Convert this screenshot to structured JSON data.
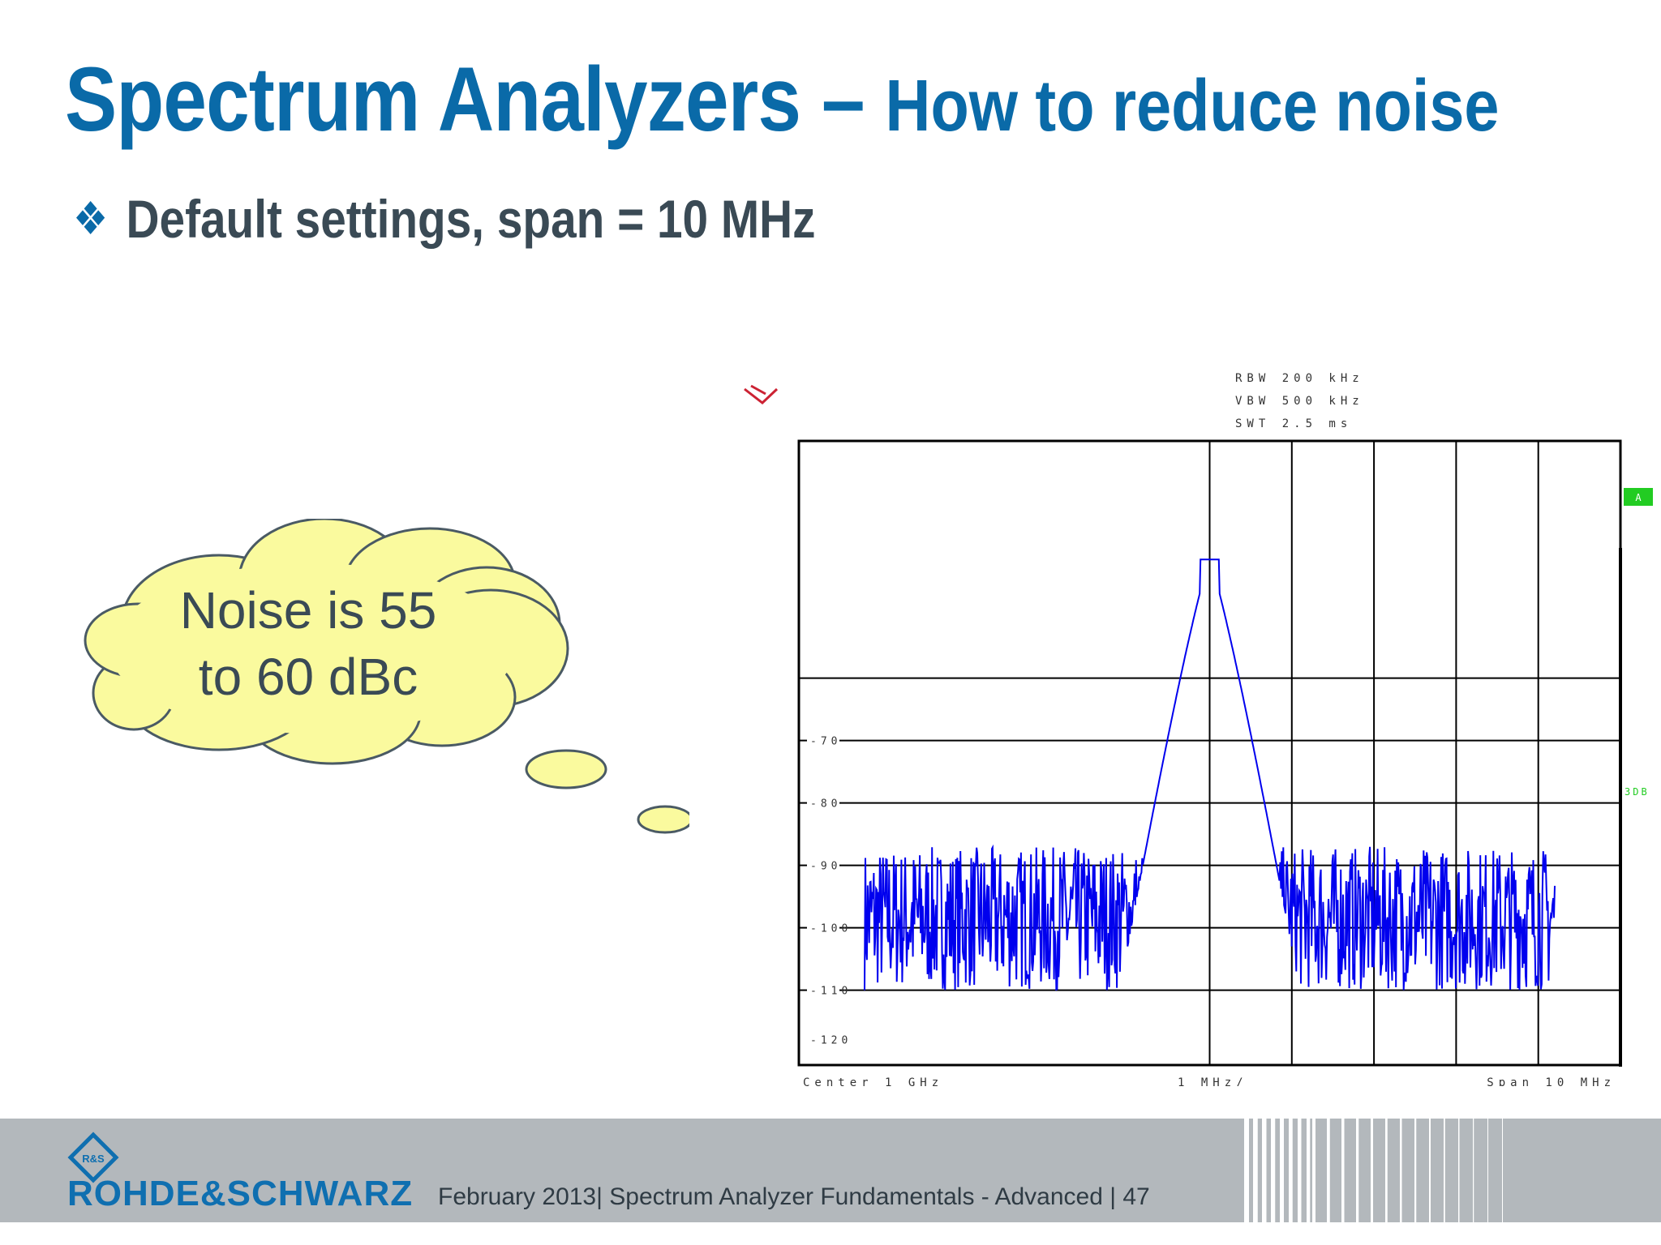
{
  "slide": {
    "title_main": "Spectrum Analyzers – ",
    "title_sub": "How to reduce noise",
    "bullet_text": "Default settings, span = 10 MHz",
    "callout_text": [
      "Noise is 55",
      "to 60 dBc"
    ]
  },
  "footer": {
    "brand": "ROHDE&SCHWARZ",
    "logo_letters": "R&S",
    "text": "February 2013| Spectrum Analyzer Fundamentals - Advanced  |  47"
  },
  "colors": {
    "title": "#0a6aa8",
    "trace": "#0000ee",
    "marker_green": "#22cc22",
    "cloud_fill": "#fafa9e",
    "footer_band": "#b3b8bc"
  },
  "chart_data": {
    "type": "line",
    "settings": [
      "RBW  200 kHz",
      "VBW  500 kHz",
      "SWT  2.5 ms"
    ],
    "x_labels": {
      "left": "Center  1 GHz",
      "mid": "1 MHz/",
      "right": "Span  10 MHz"
    },
    "x_unit": "MHz offset from center",
    "xlim": [
      -5,
      5
    ],
    "ylim": [
      -122,
      -22
    ],
    "y_ticks": [
      "-70",
      "-80",
      "-90",
      "-100",
      "-110",
      "-120"
    ],
    "y_tick_values": [
      -70,
      -80,
      -90,
      -100,
      -110,
      -120
    ],
    "marker_labels": [
      "A",
      "3DB"
    ],
    "series": [
      {
        "carrier_center": 0,
        "peak_level": -41,
        "noise_level_range": [
          -110,
          -87
        ],
        "noise_floor_mean": -98
      }
    ]
  }
}
